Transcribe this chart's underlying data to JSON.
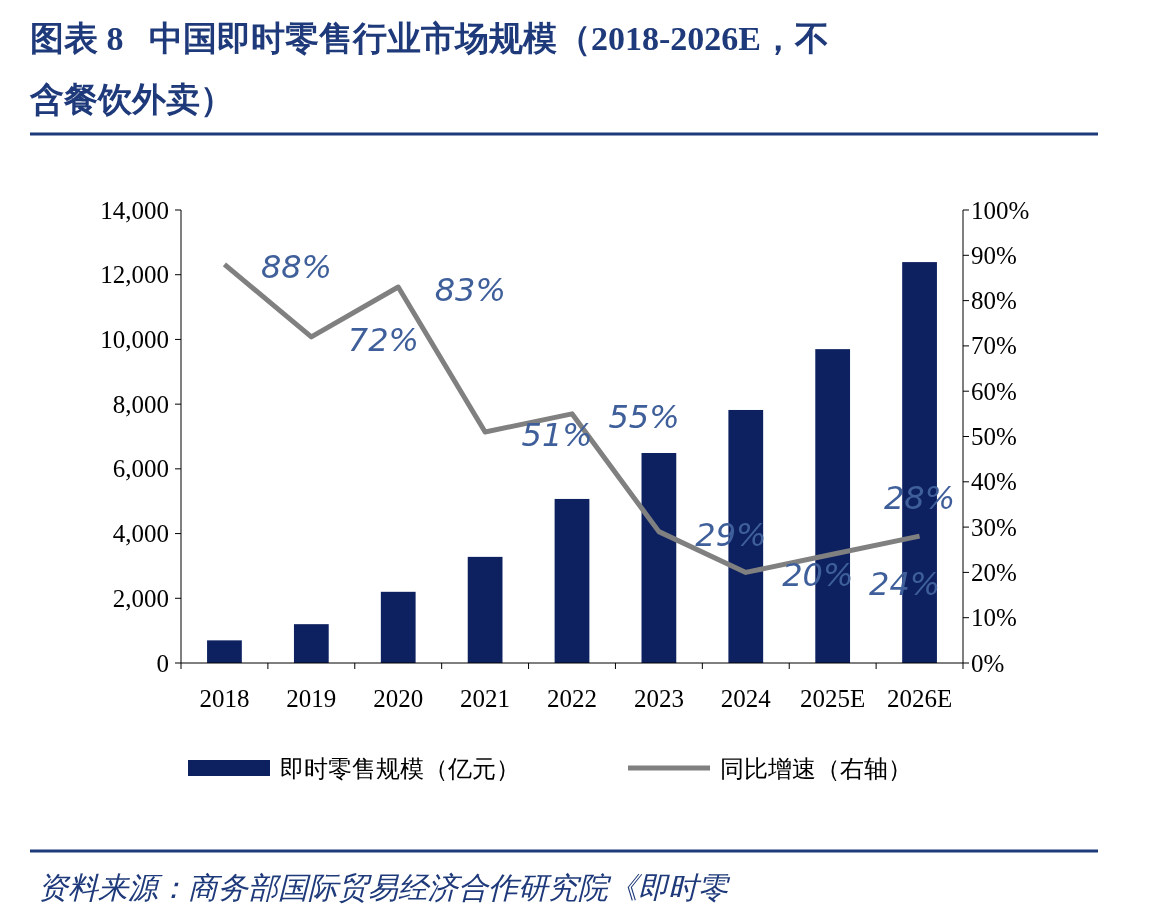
{
  "chart_data": {
    "type": "bar",
    "title": "图表 8   中国即时零售行业市场规模（2018-2026E，不含餐饮外卖）",
    "categories": [
      "2018",
      "2019",
      "2020",
      "2021",
      "2022",
      "2023",
      "2024",
      "2025E",
      "2026E"
    ],
    "series": [
      {
        "name": "即时零售规模（亿元）",
        "color": "#0d2160",
        "values": [
          700,
          1200,
          2200,
          3280,
          5070,
          6490,
          7820,
          9700,
          12390
        ]
      },
      {
        "name": "同比增速（右轴）",
        "type": "line",
        "axis": "y2",
        "color": "#808080",
        "values": [
          88,
          72,
          83,
          51,
          55,
          29,
          20,
          24,
          28
        ],
        "value_labels": [
          "88%",
          "72%",
          "83%",
          "51%",
          "55%",
          "29%",
          "20%",
          "24%",
          "28%"
        ]
      }
    ],
    "ylim": [
      0,
      14000
    ],
    "yticks": [
      {
        "value": 0,
        "label": "0"
      },
      {
        "value": 2000,
        "label": "2,000"
      },
      {
        "value": 4000,
        "label": "4,000"
      },
      {
        "value": 6000,
        "label": "6,000"
      },
      {
        "value": 8000,
        "label": "8,000"
      },
      {
        "value": 10000,
        "label": "10,000"
      },
      {
        "value": 12000,
        "label": "12,000"
      },
      {
        "value": 14000,
        "label": "14,000"
      }
    ],
    "y2lim": [
      0,
      100
    ],
    "y2ticks": [
      {
        "value": 0,
        "label": "0%"
      },
      {
        "value": 10,
        "label": "10%"
      },
      {
        "value": 20,
        "label": "20%"
      },
      {
        "value": 30,
        "label": "30%"
      },
      {
        "value": 40,
        "label": "40%"
      },
      {
        "value": 50,
        "label": "50%"
      },
      {
        "value": 60,
        "label": "60%"
      },
      {
        "value": 70,
        "label": "70%"
      },
      {
        "value": 80,
        "label": "80%"
      },
      {
        "value": 90,
        "label": "90%"
      },
      {
        "value": 100,
        "label": "100%"
      }
    ],
    "legend": "bottom",
    "grid": false,
    "marker": "none",
    "annotations": [
      "资料来源：商务部国际贸易经济合作研究院《即时零"
    ]
  }
}
